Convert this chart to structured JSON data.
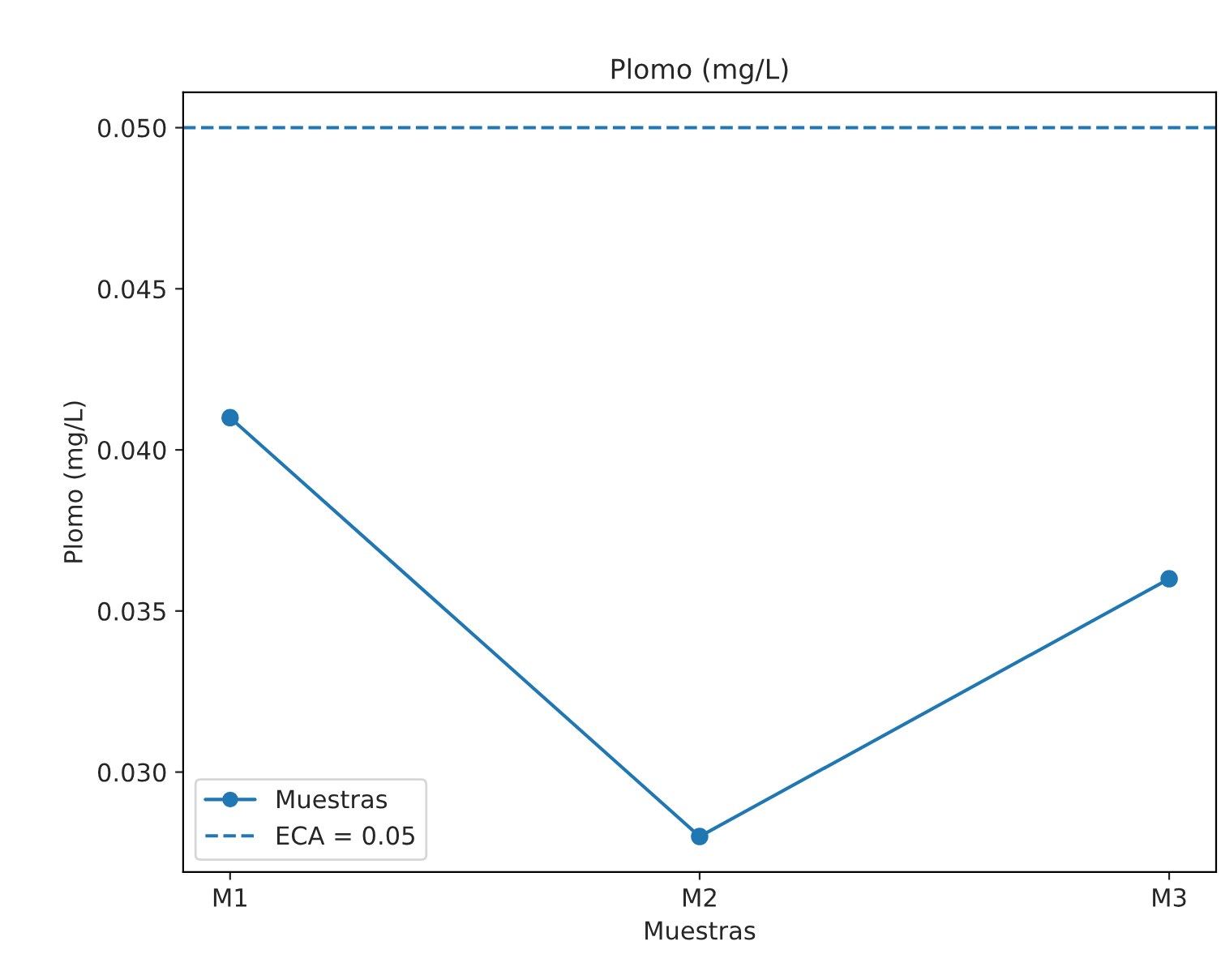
{
  "chart_data": {
    "type": "line",
    "title": "Plomo (mg/L)",
    "xlabel": "Muestras",
    "ylabel": "Plomo (mg/L)",
    "categories": [
      "M1",
      "M2",
      "M3"
    ],
    "series": [
      {
        "name": "Muestras",
        "color": "#1f77b4",
        "values": [
          0.041,
          0.028,
          0.036
        ]
      }
    ],
    "ylim": [
      0.0269,
      0.0511
    ],
    "yticks": [
      {
        "value": 0.03,
        "label": "0.030"
      },
      {
        "value": 0.035,
        "label": "0.035"
      },
      {
        "value": 0.04,
        "label": "0.040"
      },
      {
        "value": 0.045,
        "label": "0.045"
      },
      {
        "value": 0.05,
        "label": "0.050"
      }
    ],
    "ref_lines": [
      {
        "axis": "y",
        "value": 0.05,
        "label": "ECA = 0.05",
        "color": "#1f77b4",
        "line_style": "dashed"
      }
    ],
    "marker": "circle",
    "line_style": "solid",
    "legend": "bottom left",
    "grid": false
  }
}
